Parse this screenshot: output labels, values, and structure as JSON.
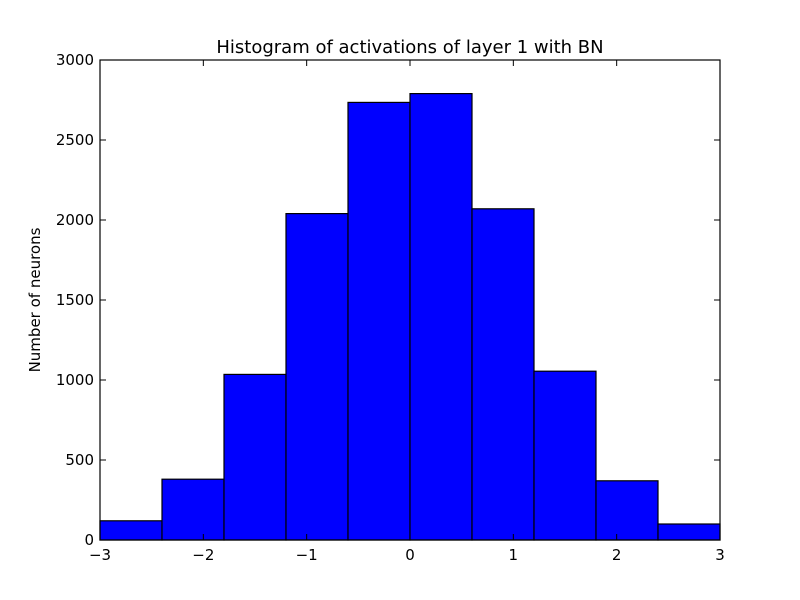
{
  "chart_data": {
    "type": "bar",
    "title": "Histogram of activations of layer 1  with BN",
    "xlabel": "",
    "ylabel": "Number of neurons",
    "bin_edges": [
      -3,
      -2.4,
      -1.8,
      -1.2,
      -0.6,
      0,
      0.6,
      1.2,
      1.8,
      2.4,
      3
    ],
    "values": [
      120,
      380,
      1035,
      2040,
      2735,
      2790,
      2070,
      1055,
      370,
      100
    ],
    "xlim": [
      -3,
      3
    ],
    "ylim": [
      0,
      3000
    ],
    "x_ticks": [
      -3,
      -2,
      -1,
      0,
      1,
      2,
      3
    ],
    "x_tick_labels": [
      "−3",
      "−2",
      "−1",
      "0",
      "1",
      "2",
      "3"
    ],
    "y_ticks": [
      0,
      500,
      1000,
      1500,
      2000,
      2500,
      3000
    ],
    "y_tick_labels": [
      "0",
      "500",
      "1000",
      "1500",
      "2000",
      "2500",
      "3000"
    ],
    "bar_color": "#0000ff",
    "grid": false,
    "legend": "none"
  }
}
